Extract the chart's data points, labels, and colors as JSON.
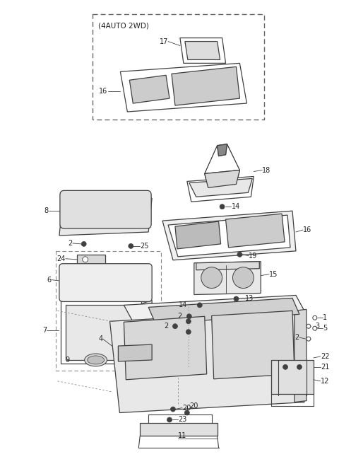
{
  "background_color": "#ffffff",
  "line_color": "#404040",
  "label_color": "#222222",
  "fig_w": 4.8,
  "fig_h": 6.56,
  "dpi": 100
}
